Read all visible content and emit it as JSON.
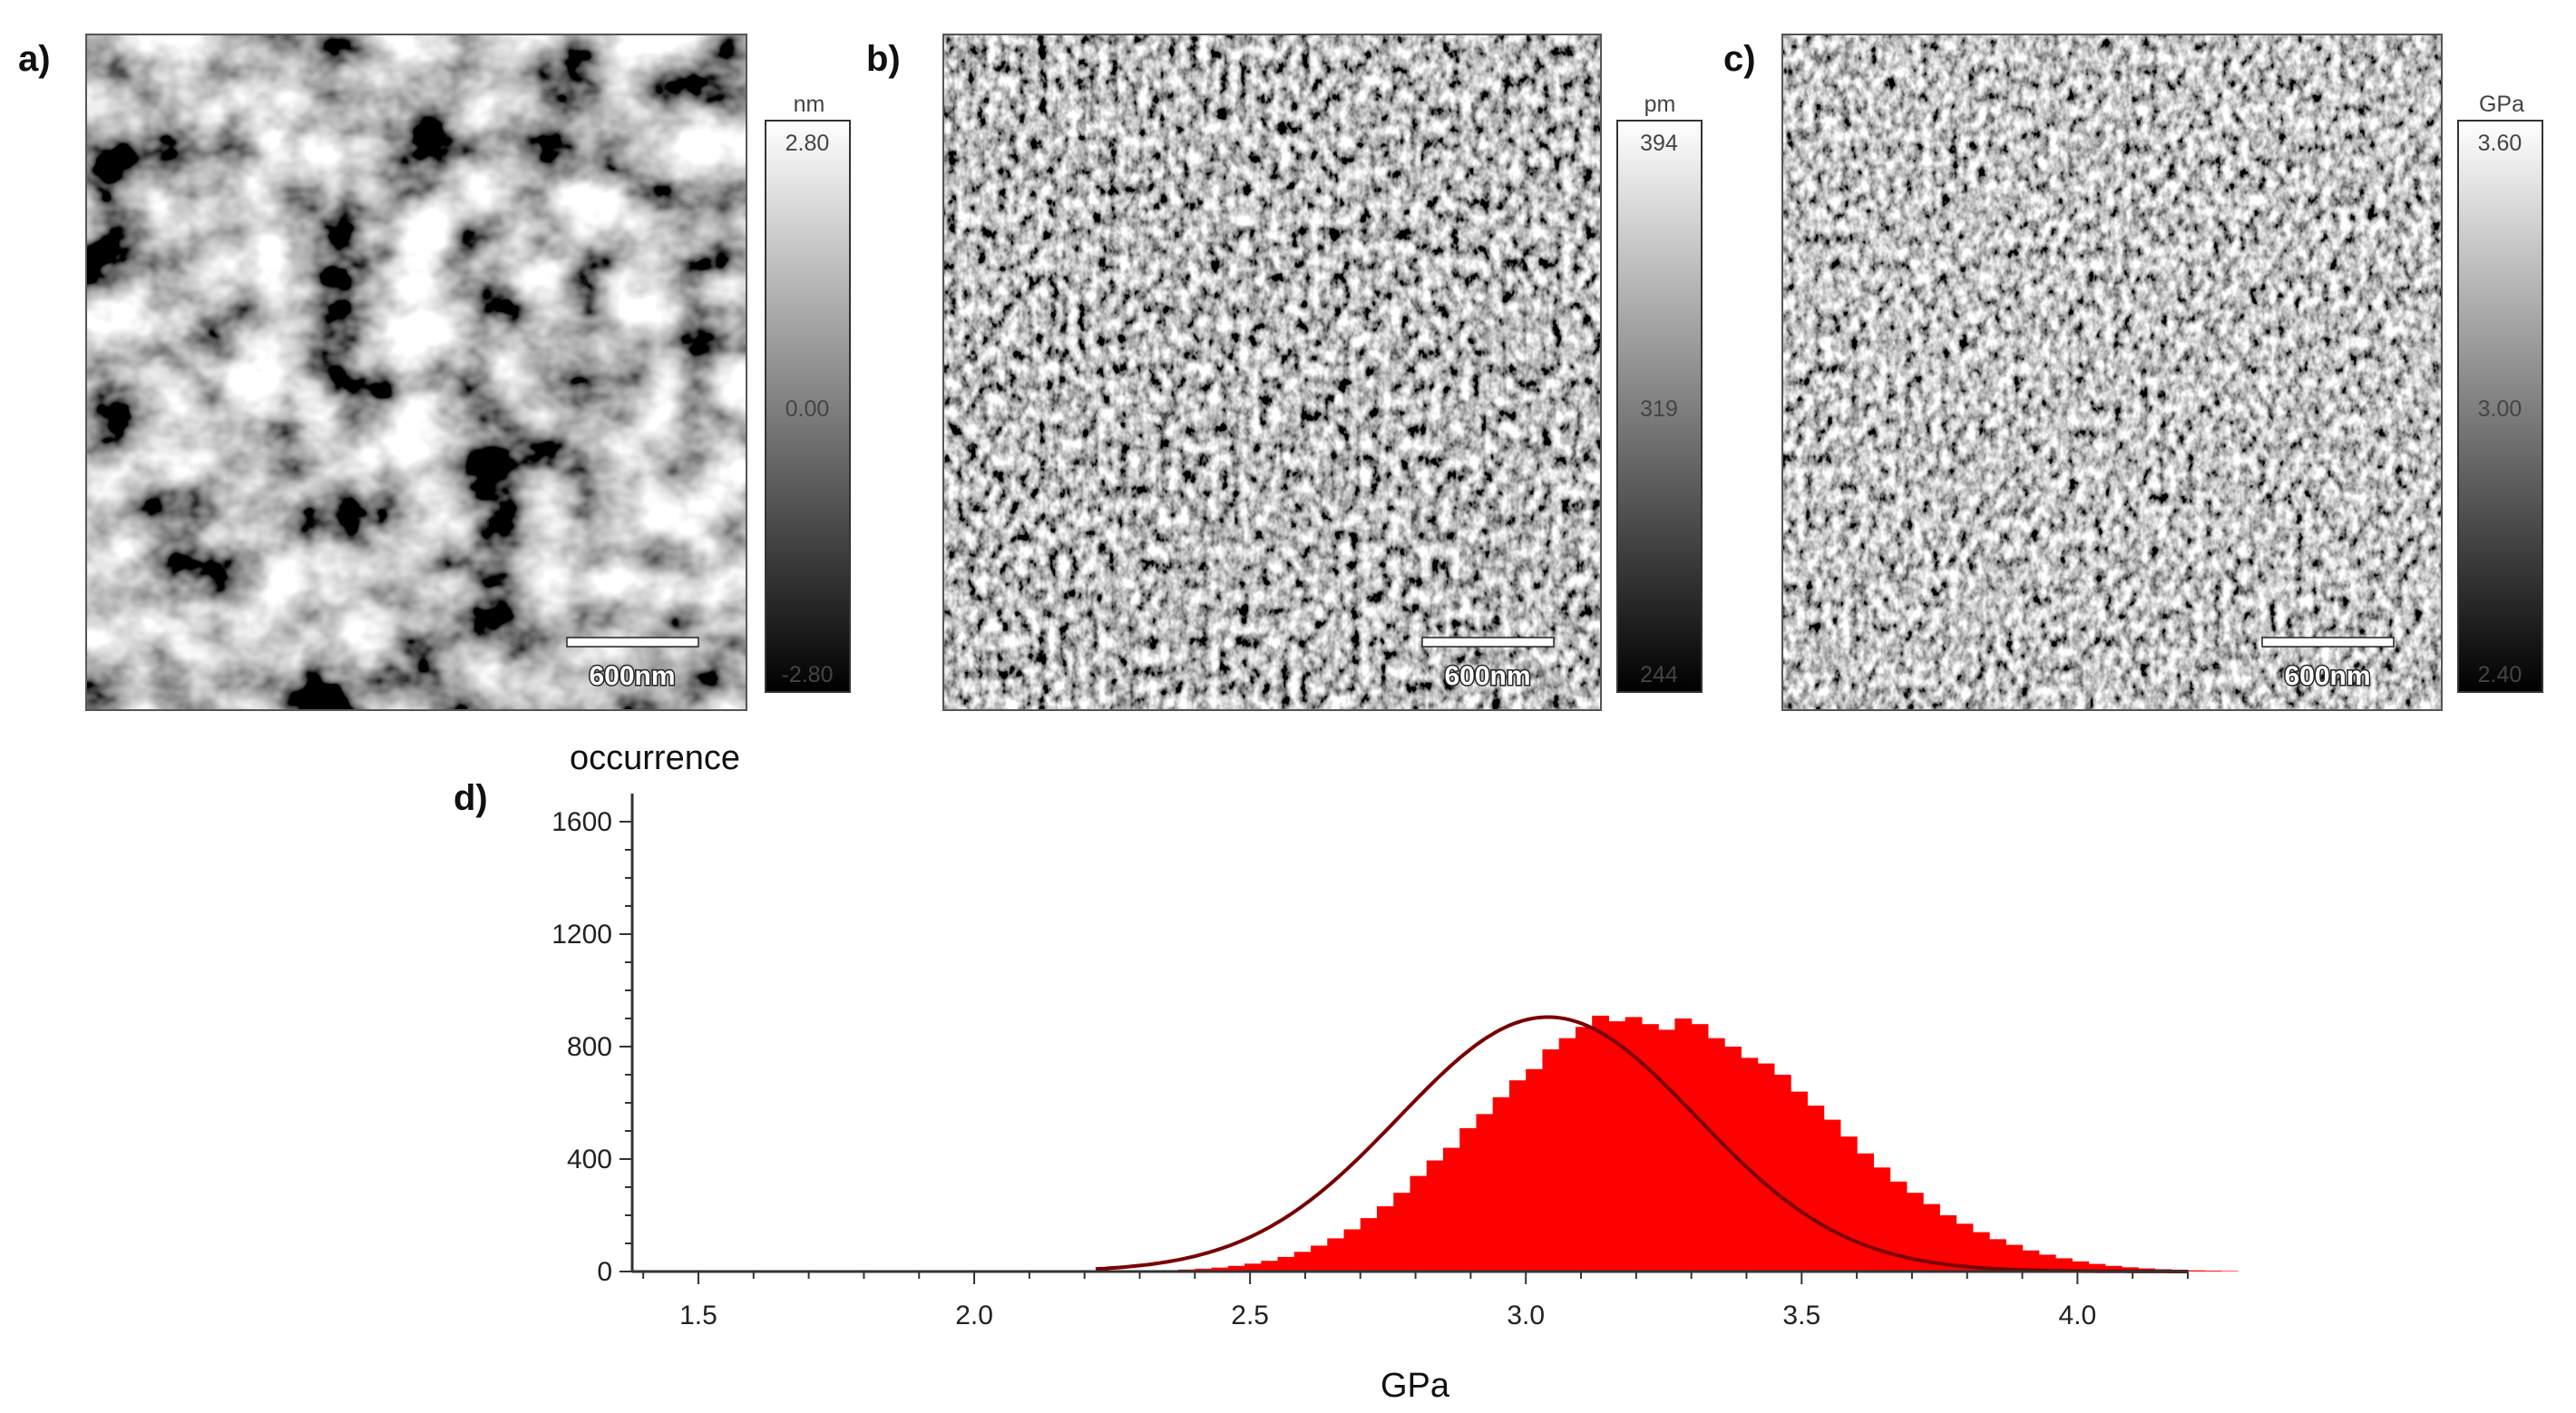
{
  "panels": [
    {
      "label": "a)",
      "unit": "nm",
      "cbar_top": "2.80",
      "cbar_mid": "0.00",
      "cbar_bottom": "-2.80",
      "scale_bar": "600nm"
    },
    {
      "label": "b)",
      "unit": "pm",
      "cbar_top": "394",
      "cbar_mid": "319",
      "cbar_bottom": "244",
      "scale_bar": "600nm"
    },
    {
      "label": "c)",
      "unit": "GPa",
      "cbar_top": "3.60",
      "cbar_mid": "3.00",
      "cbar_bottom": "2.40",
      "scale_bar": "600nm"
    }
  ],
  "histogram_panel_label": "d)",
  "chart_data": {
    "type": "bar",
    "title": "",
    "xlabel": "GPa",
    "ylabel": "occurrence",
    "xlim": [
      1.38,
      4.2
    ],
    "ylim": [
      0,
      1700
    ],
    "xticks": [
      1.5,
      2.0,
      2.5,
      3.0,
      3.5,
      4.0
    ],
    "xtick_labels": [
      "1.5",
      "2.0",
      "2.5",
      "3.0",
      "3.5",
      "4.0"
    ],
    "yticks": [
      0,
      400,
      800,
      1200,
      1600
    ],
    "ytick_labels": [
      "0",
      "400",
      "800",
      "1200",
      "1600"
    ],
    "series": [
      {
        "name": "histogram",
        "color": "#ff0000",
        "bin_start": 2.22,
        "bin_width": 0.03,
        "values": [
          2,
          2,
          3,
          4,
          5,
          7,
          10,
          14,
          20,
          28,
          38,
          52,
          70,
          92,
          118,
          150,
          190,
          232,
          280,
          340,
          395,
          440,
          510,
          560,
          620,
          680,
          720,
          790,
          830,
          870,
          910,
          890,
          905,
          880,
          860,
          900,
          880,
          830,
          800,
          760,
          740,
          700,
          640,
          590,
          540,
          480,
          420,
          370,
          320,
          280,
          240,
          200,
          170,
          140,
          115,
          95,
          75,
          60,
          47,
          36,
          27,
          20,
          15,
          11,
          8,
          6,
          4,
          3,
          2
        ]
      },
      {
        "name": "gaussian fit",
        "color": "#7a0000",
        "mean": 3.04,
        "sigma": 0.27,
        "amplitude": 905,
        "x_range": [
          2.22,
          4.2
        ]
      }
    ]
  }
}
